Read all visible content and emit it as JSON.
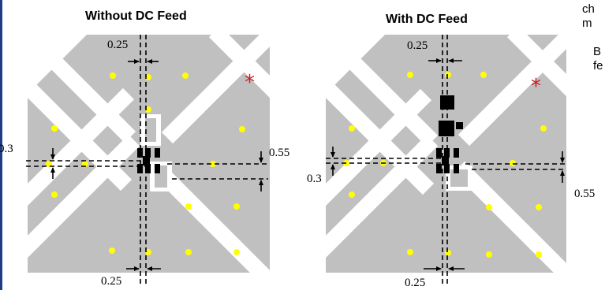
{
  "panels": [
    {
      "title": "Without DC Feed",
      "labels": {
        "top": "0.25",
        "left": "0.3",
        "right": "0.55",
        "bottom": "0.25"
      }
    },
    {
      "title": "With DC Feed",
      "labels": {
        "top": "0.25",
        "left": "0.3",
        "right": "0.55",
        "bottom": "0.25"
      }
    }
  ],
  "marker_symbol": "*",
  "side_text": {
    "line1": "ch",
    "line2": "m",
    "line3": "B",
    "line4": "fe"
  },
  "colors": {
    "substrate": "#c0c0c0",
    "gap": "#ffffff",
    "via": "#ffff00",
    "chip": "#000000",
    "marker": "#cc2222",
    "border": "#1f3c88"
  }
}
